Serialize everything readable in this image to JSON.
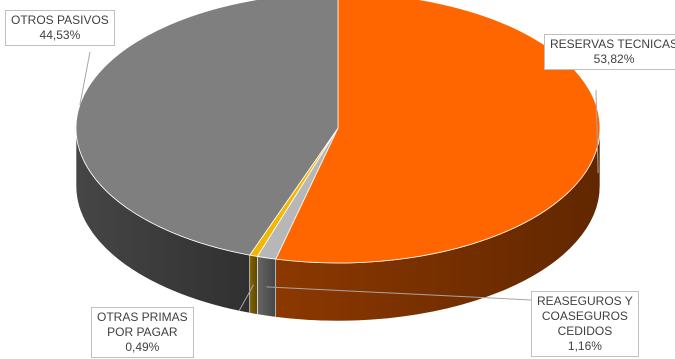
{
  "chart_data": {
    "type": "pie",
    "title": "",
    "style": "3d-pie",
    "slices": [
      {
        "label": "RESERVAS TECNICAS",
        "value": 53.82,
        "value_label": "53,82%",
        "color": "#ff6600"
      },
      {
        "label": "REASEGUROS Y COASEGUROS CEDIDOS",
        "value": 1.16,
        "value_label": "1,16%",
        "color": "#b7b7b7"
      },
      {
        "label": "OTRAS PRIMAS POR PAGAR",
        "value": 0.49,
        "value_label": "0,49%",
        "color": "#f2b705"
      },
      {
        "label": "OTROS PASIVOS",
        "value": 44.53,
        "value_label": "44,53%",
        "color": "#7f7f7f"
      }
    ],
    "callouts": [
      {
        "lines": [
          "RESERVAS TECNICAS"
        ],
        "value_label": "53,82%"
      },
      {
        "lines": [
          "REASEGUROS Y",
          "COASEGUROS",
          "CEDIDOS"
        ],
        "value_label": "1,16%"
      },
      {
        "lines": [
          "OTRAS PRIMAS",
          "POR PAGAR"
        ],
        "value_label": "0,49%"
      },
      {
        "lines": [
          "OTROS PASIVOS"
        ],
        "value_label": "44,53%"
      }
    ]
  }
}
